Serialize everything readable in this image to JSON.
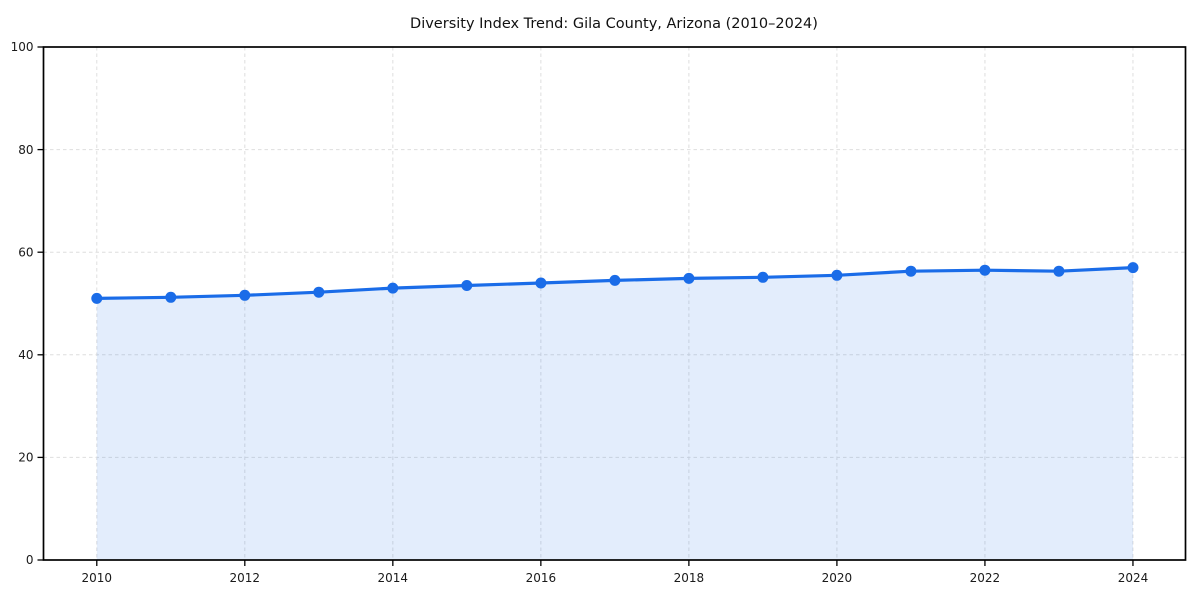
{
  "page": {
    "background": "#ffffff"
  },
  "chart_data": {
    "type": "line",
    "title": "Diversity Index Trend: Gila County, Arizona (2010–2024)",
    "x": [
      2010,
      2011,
      2012,
      2013,
      2014,
      2015,
      2016,
      2017,
      2018,
      2019,
      2020,
      2021,
      2022,
      2023,
      2024
    ],
    "series": [
      {
        "name": "Diversity Index",
        "values": [
          51.0,
          51.2,
          51.6,
          52.2,
          53.0,
          53.5,
          54.0,
          54.5,
          54.9,
          55.1,
          55.5,
          56.3,
          56.5,
          56.3,
          57.0
        ],
        "marker": "circle",
        "area_fill": true
      }
    ],
    "xlabel": "",
    "ylabel": "",
    "xlim": [
      2009.28,
      2024.71
    ],
    "ylim": [
      0,
      100
    ],
    "xticks": [
      2010,
      2012,
      2014,
      2016,
      2018,
      2020,
      2022,
      2024
    ],
    "yticks": [
      0,
      20,
      40,
      60,
      80,
      100
    ],
    "grid": true,
    "grid_style": "dashed",
    "legend_position": "none",
    "colors": {
      "line": "#1a6ce8",
      "marker": "#1a6ce8",
      "area": "#1a6ce8",
      "area_opacity": 0.12,
      "grid": "#dedede",
      "spine": "#000000",
      "tick": "#000000",
      "tick_label": "#1a1a1a",
      "title": "#111111",
      "background": "#ffffff"
    }
  }
}
